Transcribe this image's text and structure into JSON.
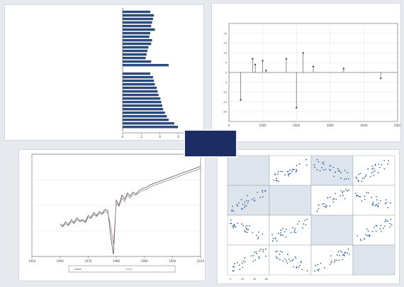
{
  "colors": {
    "navy": "#2b4a7e",
    "blue": "#3a6aa8",
    "grid": "#dfe3ea",
    "axis": "#444444",
    "line": "#555555",
    "pink": "#a07f84",
    "shade": "#dde4ec",
    "logo_bg": "#1c2d63"
  },
  "logo": {
    "small_text": "",
    "large_text": ""
  },
  "chart_data": [
    {
      "type": "bar",
      "orientation": "horizontal",
      "groups": [
        {
          "label": "",
          "values": [
            0.3,
            0.34,
            0.33,
            0.32,
            0.31,
            0.35,
            0.3,
            0.29,
            0.32,
            0.31,
            0.28,
            0.27,
            0.26,
            0.25,
            0.31,
            0.5
          ]
        },
        {
          "label": "",
          "values": [
            0.3,
            0.33,
            0.34,
            0.35,
            0.37,
            0.38,
            0.39,
            0.41,
            0.42,
            0.43,
            0.44,
            0.46,
            0.48,
            0.5,
            0.56,
            0.6
          ]
        }
      ],
      "xlim": [
        0,
        0.8
      ],
      "xticks": [
        "0",
        ".2",
        ".4",
        ".6",
        ".8"
      ],
      "xlabel": "",
      "grid": false
    },
    {
      "type": "scatter",
      "title": "",
      "points": [
        {
          "x": 700,
          "y": 7
        },
        {
          "x": 1000,
          "y": 6
        },
        {
          "x": 780,
          "y": 4
        },
        {
          "x": 1100,
          "y": 1
        },
        {
          "x": 1700,
          "y": 7
        },
        {
          "x": 2200,
          "y": 10
        },
        {
          "x": 2500,
          "y": 3
        },
        {
          "x": 3400,
          "y": 2
        },
        {
          "x": 4500,
          "y": -3
        },
        {
          "x": 350,
          "y": -14
        },
        {
          "x": 2000,
          "y": -18
        }
      ],
      "xlim": [
        0,
        5000
      ],
      "ylim": [
        -25,
        25
      ],
      "xticks": [
        "0",
        "1000",
        "2000",
        "3000",
        "4000",
        "5000"
      ],
      "yticks": [
        "-20",
        "-15",
        "-10",
        "-5",
        "0",
        "5",
        "10",
        "15",
        "20"
      ],
      "xlabel": "",
      "ylabel": "",
      "grid": true
    },
    {
      "type": "line",
      "x": [
        1960,
        1961,
        1962,
        1963,
        1964,
        1965,
        1966,
        1967,
        1968,
        1969,
        1970,
        1971,
        1972,
        1973,
        1974,
        1975,
        1976,
        1977,
        1978,
        1979,
        1980,
        1981,
        1982,
        1983,
        1984,
        1985,
        1986,
        1987,
        1988,
        1989,
        1990,
        1991,
        1992,
        1993,
        1994,
        1995,
        1996,
        1997,
        1998,
        1999,
        2000,
        2001,
        2002,
        2003,
        2004,
        2005,
        2006,
        2007,
        2008,
        2009,
        2010
      ],
      "series": [
        {
          "values": [
            0.32,
            0.3,
            0.34,
            0.31,
            0.36,
            0.33,
            0.38,
            0.35,
            0.36,
            0.34,
            0.4,
            0.38,
            0.43,
            0.4,
            0.44,
            0.42,
            0.46,
            0.45,
            0.2,
            0.02,
            0.55,
            0.5,
            0.6,
            0.56,
            0.62,
            0.59,
            0.63,
            0.61,
            0.64,
            0.66,
            0.67,
            0.68,
            0.7,
            0.71,
            0.72,
            0.73,
            0.74,
            0.75,
            0.76,
            0.77,
            0.78,
            0.79,
            0.8,
            0.81,
            0.82,
            0.83,
            0.84,
            0.85,
            0.86,
            0.87,
            0.88
          ]
        },
        {
          "values": [
            0.3,
            0.29,
            0.32,
            0.3,
            0.34,
            0.32,
            0.36,
            0.34,
            0.35,
            0.33,
            0.38,
            0.37,
            0.41,
            0.39,
            0.42,
            0.41,
            0.44,
            0.43,
            0.3,
            0.12,
            0.52,
            0.49,
            0.57,
            0.54,
            0.6,
            0.57,
            0.61,
            0.6,
            0.62,
            0.64,
            0.65,
            0.66,
            0.68,
            0.69,
            0.7,
            0.71,
            0.72,
            0.73,
            0.74,
            0.75,
            0.76,
            0.77,
            0.78,
            0.79,
            0.8,
            0.81,
            0.82,
            0.83,
            0.84,
            0.85,
            0.86
          ]
        }
      ],
      "xlim": [
        1950,
        2010
      ],
      "ylim": [
        0,
        1
      ],
      "xticks": [
        "1950",
        "1960",
        "1970",
        "1980",
        "1990",
        "2000",
        "2010"
      ],
      "yticks": [
        "",
        "",
        "",
        "",
        ""
      ],
      "xlabel": "",
      "legend": "bottom",
      "grid": true
    },
    {
      "type": "scatter-matrix",
      "variables": [
        "",
        "",
        "",
        ""
      ],
      "highlighted_cells": [
        [
          1,
          0
        ],
        [
          0,
          2
        ]
      ],
      "axis_ticks": [
        "0",
        "20",
        "40",
        "60"
      ],
      "n_points_per_cell": 30
    }
  ]
}
